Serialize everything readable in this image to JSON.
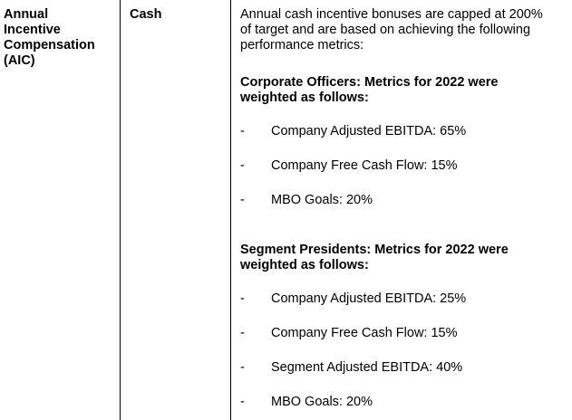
{
  "row": {
    "component_lines": [
      "Annual",
      "Incentive",
      "Compensation",
      "(AIC)"
    ],
    "type": "Cash",
    "intro_lines": [
      "Annual cash incentive bonuses are capped at 200%",
      "of target and are based on achieving the following",
      "performance metrics:"
    ],
    "groups": [
      {
        "heading_lines": [
          "Corporate Officers: Metrics for 2022 were",
          "weighted as follows:"
        ],
        "metrics": [
          {
            "dash": "-",
            "text": "Company Adjusted EBITDA: 65%"
          },
          {
            "dash": "-",
            "text": "Company Free Cash Flow: 15%"
          },
          {
            "dash": "-",
            "text": "MBO Goals: 20%"
          }
        ]
      },
      {
        "heading_lines": [
          "Segment Presidents: Metrics for 2022 were",
          "weighted as follows:"
        ],
        "metrics": [
          {
            "dash": "-",
            "text": "Company Adjusted EBITDA: 25%"
          },
          {
            "dash": "-",
            "text": "Company Free Cash Flow: 15%"
          },
          {
            "dash": "-",
            "text": "Segment Adjusted EBITDA: 40%"
          },
          {
            "dash": "-",
            "text": "MBO Goals: 20%"
          }
        ]
      }
    ]
  }
}
